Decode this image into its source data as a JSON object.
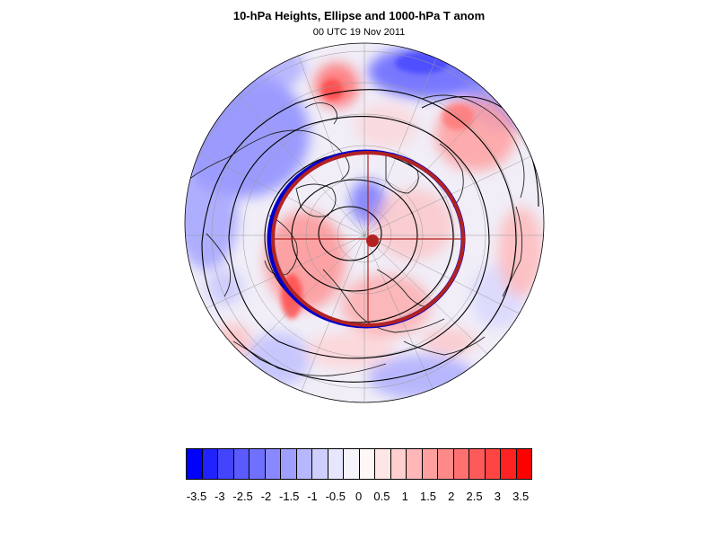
{
  "title": "10-hPa Heights, Ellipse and 1000-hPa T anom",
  "subtitle": "00 UTC 19 Nov 2011",
  "colorbar": {
    "colors": [
      "#0000ff",
      "#2222ff",
      "#4444ff",
      "#5a5aff",
      "#7070ff",
      "#8888ff",
      "#9f9fff",
      "#b7b7ff",
      "#cfcfff",
      "#e6e6ff",
      "#f6f3fb",
      "#fff6f6",
      "#ffe6e6",
      "#ffcfcf",
      "#ffb7b7",
      "#ff9f9f",
      "#ff8888",
      "#ff7070",
      "#ff5a5a",
      "#ff4444",
      "#ff2222",
      "#ff0000"
    ],
    "labels": [
      "-3.5",
      "-3",
      "-2.5",
      "-2",
      "-1.5",
      "-1",
      "-0.5",
      "0",
      "0.5",
      "1",
      "1.5",
      "2",
      "2.5",
      "3",
      "3.5"
    ]
  },
  "map": {
    "projection": "orthographic, north polar",
    "ellipse_color": "#b22222",
    "ellipse_inner_color": "#0000cc",
    "center_marker_color": "#b22222"
  }
}
